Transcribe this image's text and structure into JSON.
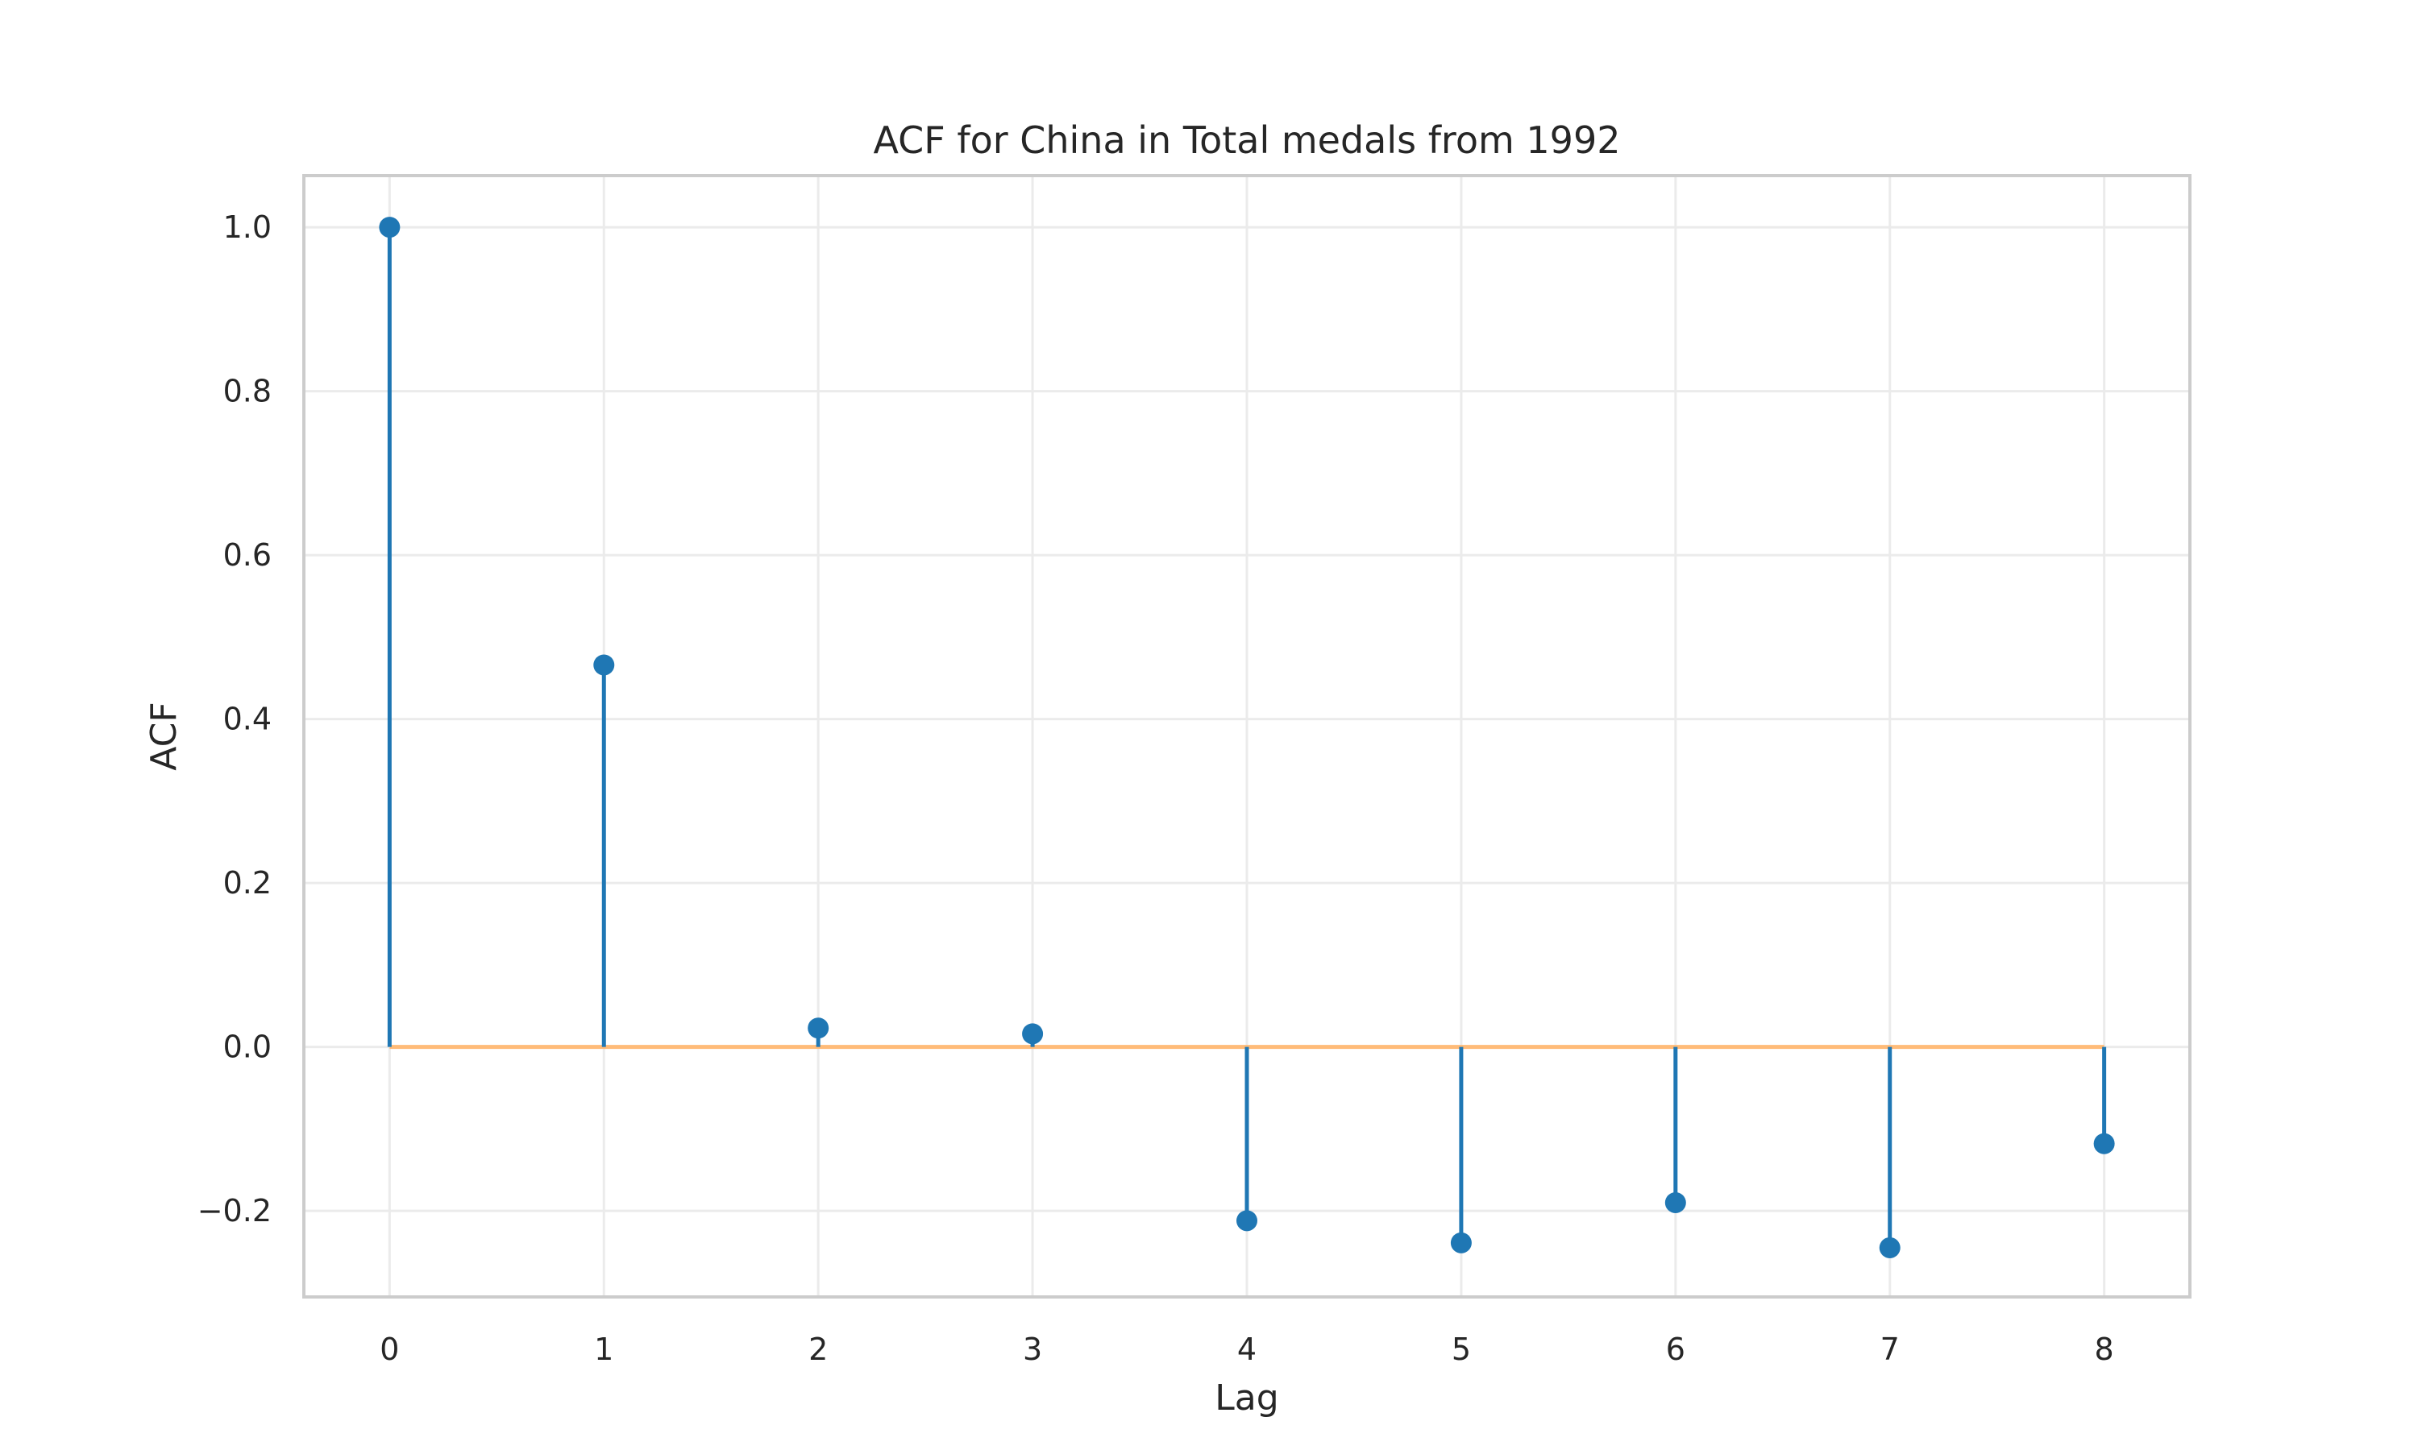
{
  "chart_data": {
    "type": "stem",
    "title": "ACF for China in Total medals from 1992",
    "xlabel": "Lag",
    "ylabel": "ACF",
    "x": [
      0,
      1,
      2,
      3,
      4,
      5,
      6,
      7,
      8
    ],
    "values": [
      1.0,
      0.466,
      0.023,
      0.016,
      -0.212,
      -0.239,
      -0.19,
      -0.245,
      -0.118
    ],
    "xlim": [
      -0.4,
      8.4
    ],
    "ylim": [
      -0.305,
      1.063
    ],
    "xticks": [
      "0",
      "1",
      "2",
      "3",
      "4",
      "5",
      "6",
      "7",
      "8"
    ],
    "yticks": [
      {
        "value": -0.2,
        "label": "−0.2"
      },
      {
        "value": 0.0,
        "label": "0.0"
      },
      {
        "value": 0.2,
        "label": "0.2"
      },
      {
        "value": 0.4,
        "label": "0.4"
      },
      {
        "value": 0.6,
        "label": "0.6"
      },
      {
        "value": 0.8,
        "label": "0.8"
      },
      {
        "value": 1.0,
        "label": "1.0"
      }
    ],
    "grid": true,
    "colors": {
      "stem": "#1f77b4",
      "baseline": "#ffbb78"
    }
  }
}
